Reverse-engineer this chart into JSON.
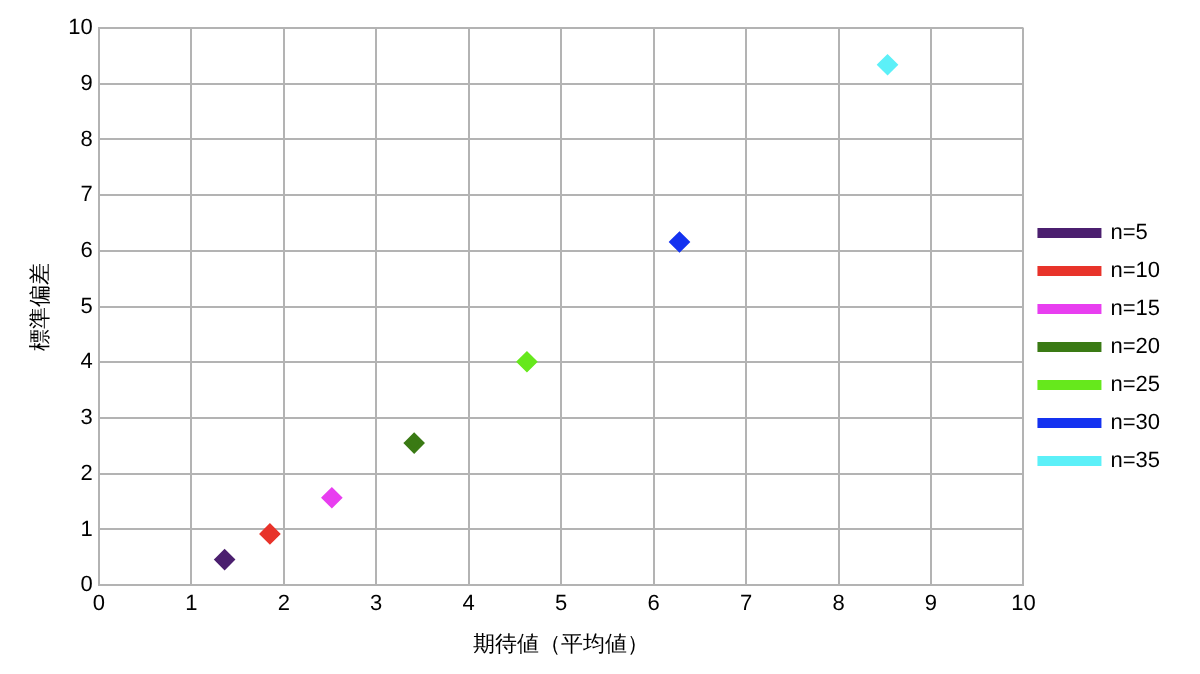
{
  "chart_data": {
    "type": "scatter",
    "xlabel": "期待値（平均値）",
    "ylabel": "標準偏差",
    "xlim": [
      0,
      10
    ],
    "ylim": [
      0,
      10
    ],
    "xticks": [
      0,
      1,
      2,
      3,
      4,
      5,
      6,
      7,
      8,
      9,
      10
    ],
    "yticks": [
      0,
      1,
      2,
      3,
      4,
      5,
      6,
      7,
      8,
      9,
      10
    ],
    "grid": true,
    "legend": "right",
    "marker": "diamond",
    "series": [
      {
        "name": "n=5",
        "color": "#4b1f6f",
        "x": [
          1.36
        ],
        "values": [
          0.46
        ]
      },
      {
        "name": "n=10",
        "color": "#e8332a",
        "x": [
          1.85
        ],
        "values": [
          0.92
        ]
      },
      {
        "name": "n=15",
        "color": "#e83ef0",
        "x": [
          2.52
        ],
        "values": [
          1.57
        ]
      },
      {
        "name": "n=20",
        "color": "#3a7a14",
        "x": [
          3.41
        ],
        "values": [
          2.55
        ]
      },
      {
        "name": "n=25",
        "color": "#66e81c",
        "x": [
          4.63
        ],
        "values": [
          4.01
        ]
      },
      {
        "name": "n=30",
        "color": "#1432f0",
        "x": [
          6.28
        ],
        "values": [
          6.16
        ]
      },
      {
        "name": "n=35",
        "color": "#5cf0f8",
        "x": [
          8.53
        ],
        "values": [
          9.34
        ]
      }
    ]
  }
}
